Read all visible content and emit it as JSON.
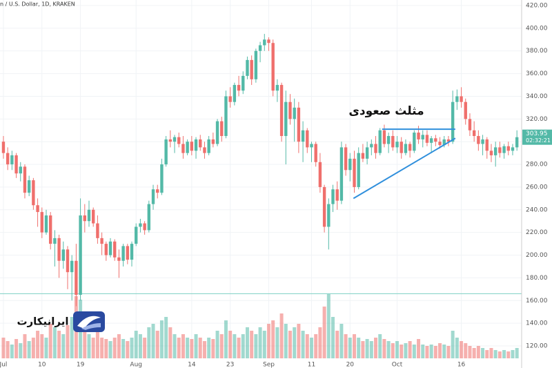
{
  "chart_data": {
    "type": "candlestick",
    "title": "n / U.S. Dollar, 1D, KRAKEN",
    "annotation": "مثلث صعودی",
    "watermark": "ایرانیکارت",
    "last_label": "303.95",
    "countdown": "02:32:21",
    "up_color": "#53b9a7",
    "down_color": "#ef6f6c",
    "line_color": "#2f8fdc",
    "level_color": "#7ccfc2",
    "grid": true,
    "ylim": [
      120,
      420
    ],
    "yticks": [
      {
        "value": 120,
        "label": "120.00"
      },
      {
        "value": 140,
        "label": "140.00"
      },
      {
        "value": 160,
        "label": "160.00"
      },
      {
        "value": 180,
        "label": "180.00"
      },
      {
        "value": 200,
        "label": "200.00"
      },
      {
        "value": 220,
        "label": "220.00"
      },
      {
        "value": 240,
        "label": "240.00"
      },
      {
        "value": 260,
        "label": "260.00"
      },
      {
        "value": 280,
        "label": "280.00"
      },
      {
        "value": 300,
        "label": "300.00"
      },
      {
        "value": 320,
        "label": "320.00"
      },
      {
        "value": 340,
        "label": "340.00"
      },
      {
        "value": 360,
        "label": "360.00"
      },
      {
        "value": 380,
        "label": "380.00"
      },
      {
        "value": 400,
        "label": "400.00"
      },
      {
        "value": 420,
        "label": "420.00"
      }
    ],
    "xlim": [
      -0.8,
      121.1
    ],
    "xticks": [
      {
        "value": 0,
        "label": "Jul"
      },
      {
        "value": 9,
        "label": "10"
      },
      {
        "value": 18,
        "label": "19"
      },
      {
        "value": 31,
        "label": "Aug"
      },
      {
        "value": 44,
        "label": "14"
      },
      {
        "value": 53,
        "label": "23"
      },
      {
        "value": 62,
        "label": "Sep"
      },
      {
        "value": 72,
        "label": "11"
      },
      {
        "value": 81,
        "label": "20"
      },
      {
        "value": 92,
        "label": "Oct"
      },
      {
        "value": 107,
        "label": "16"
      }
    ],
    "levels": [
      166
    ],
    "trend_lines": [
      {
        "from": [
          81.8,
          250
        ],
        "to": [
          105.6,
          303
        ]
      },
      {
        "from": [
          88.5,
          311
        ],
        "to": [
          105.6,
          311
        ]
      }
    ],
    "ohlc": [
      [
        300,
        305,
        285,
        290
      ],
      [
        290,
        295,
        275,
        280
      ],
      [
        280,
        292,
        275,
        288
      ],
      [
        288,
        290,
        268,
        272
      ],
      [
        272,
        282,
        265,
        278
      ],
      [
        278,
        280,
        250,
        255
      ],
      [
        255,
        270,
        252,
        266
      ],
      [
        266,
        268,
        240,
        244
      ],
      [
        244,
        250,
        225,
        238
      ],
      [
        238,
        242,
        215,
        220
      ],
      [
        220,
        240,
        218,
        235
      ],
      [
        235,
        238,
        205,
        210
      ],
      [
        210,
        222,
        190,
        215
      ],
      [
        215,
        218,
        180,
        195
      ],
      [
        195,
        212,
        188,
        205
      ],
      [
        205,
        208,
        170,
        185
      ],
      [
        185,
        200,
        160,
        195
      ],
      [
        195,
        210,
        155,
        165
      ],
      [
        165,
        250,
        160,
        235
      ],
      [
        235,
        245,
        220,
        230
      ],
      [
        230,
        248,
        225,
        240
      ],
      [
        240,
        242,
        225,
        228
      ],
      [
        228,
        235,
        210,
        215
      ],
      [
        215,
        220,
        200,
        210
      ],
      [
        210,
        212,
        195,
        200
      ],
      [
        200,
        215,
        198,
        212
      ],
      [
        212,
        214,
        195,
        198
      ],
      [
        198,
        205,
        180,
        195
      ],
      [
        195,
        210,
        190,
        208
      ],
      [
        208,
        210,
        192,
        196
      ],
      [
        196,
        212,
        190,
        210
      ],
      [
        210,
        228,
        208,
        225
      ],
      [
        225,
        232,
        220,
        228
      ],
      [
        228,
        230,
        218,
        222
      ],
      [
        222,
        248,
        220,
        245
      ],
      [
        245,
        262,
        240,
        258
      ],
      [
        258,
        262,
        250,
        255
      ],
      [
        255,
        285,
        253,
        280
      ],
      [
        280,
        305,
        278,
        302
      ],
      [
        302,
        310,
        295,
        300
      ],
      [
        300,
        306,
        290,
        304
      ],
      [
        304,
        308,
        295,
        298
      ],
      [
        298,
        305,
        285,
        290
      ],
      [
        290,
        302,
        288,
        300
      ],
      [
        300,
        305,
        288,
        292
      ],
      [
        292,
        304,
        285,
        302
      ],
      [
        302,
        306,
        292,
        295
      ],
      [
        295,
        300,
        285,
        290
      ],
      [
        290,
        305,
        288,
        302
      ],
      [
        302,
        308,
        295,
        298
      ],
      [
        298,
        320,
        296,
        318
      ],
      [
        318,
        322,
        300,
        305
      ],
      [
        305,
        345,
        303,
        340
      ],
      [
        340,
        348,
        330,
        335
      ],
      [
        335,
        352,
        332,
        350
      ],
      [
        350,
        358,
        340,
        345
      ],
      [
        345,
        362,
        342,
        358
      ],
      [
        358,
        375,
        355,
        372
      ],
      [
        372,
        376,
        350,
        355
      ],
      [
        355,
        382,
        352,
        380
      ],
      [
        380,
        388,
        370,
        385
      ],
      [
        385,
        395,
        380,
        390
      ],
      [
        390,
        392,
        380,
        387
      ],
      [
        387,
        390,
        340,
        345
      ],
      [
        345,
        355,
        335,
        350
      ],
      [
        350,
        352,
        300,
        305
      ],
      [
        305,
        345,
        280,
        335
      ],
      [
        335,
        342,
        315,
        320
      ],
      [
        320,
        338,
        300,
        330
      ],
      [
        330,
        335,
        290,
        300
      ],
      [
        300,
        318,
        282,
        310
      ],
      [
        310,
        312,
        290,
        295
      ],
      [
        295,
        300,
        282,
        298
      ],
      [
        298,
        300,
        278,
        282
      ],
      [
        282,
        290,
        255,
        260
      ],
      [
        260,
        262,
        220,
        225
      ],
      [
        225,
        250,
        205,
        245
      ],
      [
        245,
        262,
        238,
        258
      ],
      [
        258,
        265,
        240,
        248
      ],
      [
        248,
        300,
        245,
        295
      ],
      [
        295,
        298,
        270,
        275
      ],
      [
        275,
        290,
        265,
        285
      ],
      [
        285,
        292,
        255,
        260
      ],
      [
        260,
        295,
        258,
        290
      ],
      [
        290,
        298,
        282,
        285
      ],
      [
        285,
        300,
        280,
        295
      ],
      [
        295,
        302,
        288,
        298
      ],
      [
        298,
        305,
        285,
        290
      ],
      [
        290,
        312,
        288,
        310
      ],
      [
        310,
        315,
        295,
        298
      ],
      [
        298,
        308,
        290,
        305
      ],
      [
        305,
        310,
        292,
        295
      ],
      [
        295,
        305,
        290,
        300
      ],
      [
        300,
        304,
        285,
        290
      ],
      [
        290,
        302,
        288,
        298
      ],
      [
        298,
        300,
        286,
        292
      ],
      [
        292,
        310,
        290,
        308
      ],
      [
        308,
        314,
        298,
        302
      ],
      [
        302,
        310,
        295,
        306
      ],
      [
        306,
        310,
        296,
        299
      ],
      [
        299,
        305,
        290,
        303
      ],
      [
        303,
        306,
        296,
        300
      ],
      [
        300,
        304,
        294,
        297
      ],
      [
        297,
        305,
        295,
        302
      ],
      [
        302,
        305,
        296,
        300
      ],
      [
        300,
        345,
        298,
        335
      ],
      [
        335,
        346,
        328,
        340
      ],
      [
        340,
        348,
        330,
        335
      ],
      [
        335,
        338,
        315,
        320
      ],
      [
        320,
        325,
        305,
        310
      ],
      [
        310,
        318,
        300,
        305
      ],
      [
        305,
        310,
        292,
        298
      ],
      [
        298,
        306,
        288,
        302
      ],
      [
        302,
        304,
        285,
        292
      ],
      [
        292,
        298,
        282,
        288
      ],
      [
        288,
        300,
        278,
        295
      ],
      [
        295,
        300,
        286,
        290
      ],
      [
        290,
        298,
        285,
        296
      ],
      [
        296,
        300,
        288,
        292
      ],
      [
        292,
        298,
        288,
        295
      ],
      [
        295,
        310,
        292,
        303.95
      ]
    ],
    "volume": [
      30,
      25,
      20,
      28,
      22,
      35,
      25,
      30,
      40,
      35,
      30,
      50,
      45,
      40,
      35,
      48,
      60,
      90,
      85,
      45,
      35,
      30,
      40,
      30,
      28,
      25,
      30,
      35,
      28,
      25,
      30,
      40,
      35,
      30,
      45,
      50,
      40,
      55,
      60,
      45,
      35,
      30,
      35,
      30,
      28,
      35,
      30,
      25,
      30,
      28,
      40,
      35,
      55,
      40,
      35,
      30,
      35,
      45,
      40,
      35,
      45,
      40,
      50,
      55,
      45,
      65,
      50,
      40,
      45,
      50,
      40,
      35,
      30,
      35,
      45,
      75,
      93,
      60,
      40,
      50,
      35,
      30,
      35,
      30,
      25,
      28,
      25,
      30,
      35,
      28,
      25,
      22,
      25,
      20,
      22,
      25,
      20,
      28,
      20,
      18,
      20,
      18,
      22,
      20,
      18,
      40,
      30,
      25,
      22,
      18,
      15,
      18,
      15,
      12,
      15,
      12,
      10,
      12,
      10,
      12,
      15
    ]
  }
}
